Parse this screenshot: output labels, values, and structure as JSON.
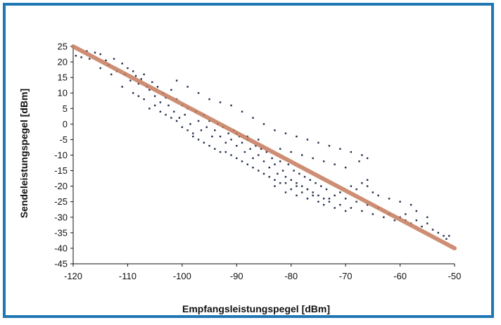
{
  "chart_data": {
    "type": "scatter",
    "xlabel": "Empfangsleistungspegel [dBm]",
    "ylabel": "Sendeleistungspegel [dBm]",
    "xlim": [
      -120,
      -50
    ],
    "ylim": [
      -45,
      25
    ],
    "xticks": [
      "-120",
      "-110",
      "-100",
      "-90",
      "-80",
      "-70",
      "-60",
      "-50"
    ],
    "yticks": [
      "25",
      "20",
      "15",
      "10",
      "5",
      "0",
      "-5",
      "-10",
      "-15",
      "-20",
      "-25",
      "-30",
      "-35",
      "-40",
      "-45"
    ],
    "grid": false,
    "colors": {
      "points": "#1f2a4a",
      "fit_line": "#c47a5c",
      "frame": "#1f78b4"
    },
    "series": [
      {
        "type": "scatter",
        "points": [
          [
            -119.5,
            22
          ],
          [
            -118.5,
            21.5
          ],
          [
            -117.5,
            23.5
          ],
          [
            -117,
            21
          ],
          [
            -116,
            23
          ],
          [
            -115,
            22.5
          ],
          [
            -114,
            20.5
          ],
          [
            -113.5,
            19
          ],
          [
            -112.5,
            21
          ],
          [
            -112,
            17
          ],
          [
            -111,
            19.5
          ],
          [
            -110.5,
            16
          ],
          [
            -110,
            18
          ],
          [
            -109.5,
            14
          ],
          [
            -109,
            17
          ],
          [
            -108.5,
            15.5
          ],
          [
            -108,
            13
          ],
          [
            -107.5,
            14.5
          ],
          [
            -107,
            16
          ],
          [
            -106.5,
            12
          ],
          [
            -106,
            11
          ],
          [
            -105.5,
            13.5
          ],
          [
            -105,
            9
          ],
          [
            -104.5,
            12
          ],
          [
            -104,
            7
          ],
          [
            -103.5,
            10
          ],
          [
            -103,
            8.5
          ],
          [
            -102.5,
            6
          ],
          [
            -102,
            11
          ],
          [
            -101.5,
            4
          ],
          [
            -101,
            8
          ],
          [
            -100.5,
            2
          ],
          [
            -100,
            6
          ],
          [
            -99.5,
            3
          ],
          [
            -99,
            5
          ],
          [
            -98.5,
            0
          ],
          [
            -98,
            -3
          ],
          [
            -97.5,
            4
          ],
          [
            -97,
            1
          ],
          [
            -96.5,
            -2
          ],
          [
            -96,
            3
          ],
          [
            -95.5,
            -1
          ],
          [
            -95,
            1
          ],
          [
            -94.5,
            -4
          ],
          [
            -94,
            -2
          ],
          [
            -93.5,
            0
          ],
          [
            -93,
            -4
          ],
          [
            -92.5,
            -1
          ],
          [
            -92,
            -6
          ],
          [
            -91.5,
            -3
          ],
          [
            -91,
            -5
          ],
          [
            -90.5,
            -2
          ],
          [
            -90,
            -7
          ],
          [
            -89.5,
            -4
          ],
          [
            -89,
            -6
          ],
          [
            -88.5,
            -9
          ],
          [
            -88,
            -5
          ],
          [
            -87.5,
            -8
          ],
          [
            -87,
            -11
          ],
          [
            -86.5,
            -7
          ],
          [
            -86,
            -10
          ],
          [
            -85.5,
            -8
          ],
          [
            -85,
            -12
          ],
          [
            -84.5,
            -9
          ],
          [
            -84,
            -14
          ],
          [
            -83.5,
            -11
          ],
          [
            -83,
            -13
          ],
          [
            -82.5,
            -16
          ],
          [
            -82,
            -12
          ],
          [
            -81.5,
            -15
          ],
          [
            -81,
            -17
          ],
          [
            -80.5,
            -13
          ],
          [
            -80,
            -18
          ],
          [
            -79.5,
            -15
          ],
          [
            -79,
            -19
          ],
          [
            -78.5,
            -16
          ],
          [
            -78,
            -20
          ],
          [
            -77.5,
            -17
          ],
          [
            -77,
            -21
          ],
          [
            -76.5,
            -18
          ],
          [
            -76,
            -22
          ],
          [
            -75.5,
            -19
          ],
          [
            -75,
            -23
          ],
          [
            -74.5,
            -20
          ],
          [
            -74,
            -24
          ],
          [
            -73.5,
            -21
          ],
          [
            -73,
            -25
          ],
          [
            -72,
            -23
          ],
          [
            -71,
            -26
          ],
          [
            -70,
            -24
          ],
          [
            -69,
            -27
          ],
          [
            -68,
            -25
          ],
          [
            -67,
            -28
          ],
          [
            -66,
            -26
          ],
          [
            -65,
            -29
          ],
          [
            -64,
            -27
          ],
          [
            -63,
            -30
          ],
          [
            -62,
            -29
          ],
          [
            -61,
            -31
          ],
          [
            -60,
            -30
          ],
          [
            -59,
            -31
          ],
          [
            -58,
            -32
          ],
          [
            -57,
            -31
          ],
          [
            -56,
            -33
          ],
          [
            -55,
            -32
          ],
          [
            -54,
            -34
          ],
          [
            -53,
            -35
          ],
          [
            -52,
            -36
          ],
          [
            -51.5,
            -37
          ],
          [
            -51,
            -36
          ],
          [
            -101,
            14
          ],
          [
            -99,
            12
          ],
          [
            -97,
            10
          ],
          [
            -95,
            8
          ],
          [
            -93,
            7
          ],
          [
            -91,
            6
          ],
          [
            -89,
            4
          ],
          [
            -87,
            2
          ],
          [
            -85,
            0
          ],
          [
            -83,
            -2
          ],
          [
            -81,
            -3
          ],
          [
            -79,
            -4
          ],
          [
            -77,
            -5
          ],
          [
            -75,
            -6
          ],
          [
            -73,
            -7
          ],
          [
            -71,
            -8
          ],
          [
            -69,
            -9
          ],
          [
            -67,
            -10
          ],
          [
            -66,
            -11
          ],
          [
            -67.5,
            -12
          ],
          [
            -70,
            -14
          ],
          [
            -72,
            -13
          ],
          [
            -74,
            -12
          ],
          [
            -76,
            -11
          ],
          [
            -78,
            -10
          ],
          [
            -80,
            -9
          ],
          [
            -82,
            -8
          ],
          [
            -86,
            -5
          ],
          [
            -88,
            -4
          ],
          [
            -90,
            -3
          ],
          [
            -108,
            9
          ],
          [
            -106,
            5
          ],
          [
            -104,
            4
          ],
          [
            -102,
            2
          ],
          [
            -100,
            -1
          ],
          [
            -98,
            -4
          ],
          [
            -96,
            -6
          ],
          [
            -94,
            -8
          ],
          [
            -92,
            -9
          ],
          [
            -90,
            -11
          ],
          [
            -88,
            -13
          ],
          [
            -86,
            -15
          ],
          [
            -84,
            -17
          ],
          [
            -82,
            -19
          ],
          [
            -80,
            -21
          ],
          [
            -78,
            -22
          ],
          [
            -76,
            -23
          ],
          [
            -74,
            -26
          ],
          [
            -72,
            -27
          ],
          [
            -70,
            -28
          ],
          [
            -68,
            -21
          ],
          [
            -66,
            -20
          ],
          [
            -65,
            -22
          ],
          [
            -64,
            -23
          ],
          [
            -62,
            -24
          ],
          [
            -60,
            -25
          ],
          [
            -58,
            -26
          ],
          [
            -59,
            -29
          ],
          [
            -57,
            -28
          ],
          [
            -55,
            -30
          ],
          [
            -83,
            -20
          ],
          [
            -81,
            -22
          ],
          [
            -79,
            -23
          ],
          [
            -77,
            -24
          ],
          [
            -75,
            -25
          ],
          [
            -73,
            -24
          ],
          [
            -71,
            -22
          ],
          [
            -69,
            -20
          ],
          [
            -67,
            -19
          ],
          [
            -66,
            -18
          ],
          [
            -115,
            18
          ],
          [
            -113,
            16
          ],
          [
            -111,
            12
          ],
          [
            -109,
            10
          ],
          [
            -107,
            8
          ],
          [
            -105,
            6
          ],
          [
            -103,
            3
          ],
          [
            -101,
            1
          ],
          [
            -99,
            -2
          ],
          [
            -97,
            -5
          ],
          [
            -95,
            -7
          ],
          [
            -93,
            -9
          ],
          [
            -91,
            -10
          ],
          [
            -89,
            -12
          ],
          [
            -87,
            -14
          ],
          [
            -85,
            -16
          ],
          [
            -83,
            -18
          ],
          [
            -81,
            -19
          ],
          [
            -79,
            -20
          ],
          [
            -77,
            -21
          ]
        ]
      },
      {
        "type": "line",
        "points": [
          [
            -120,
            25
          ],
          [
            -50,
            -40
          ]
        ]
      }
    ]
  }
}
